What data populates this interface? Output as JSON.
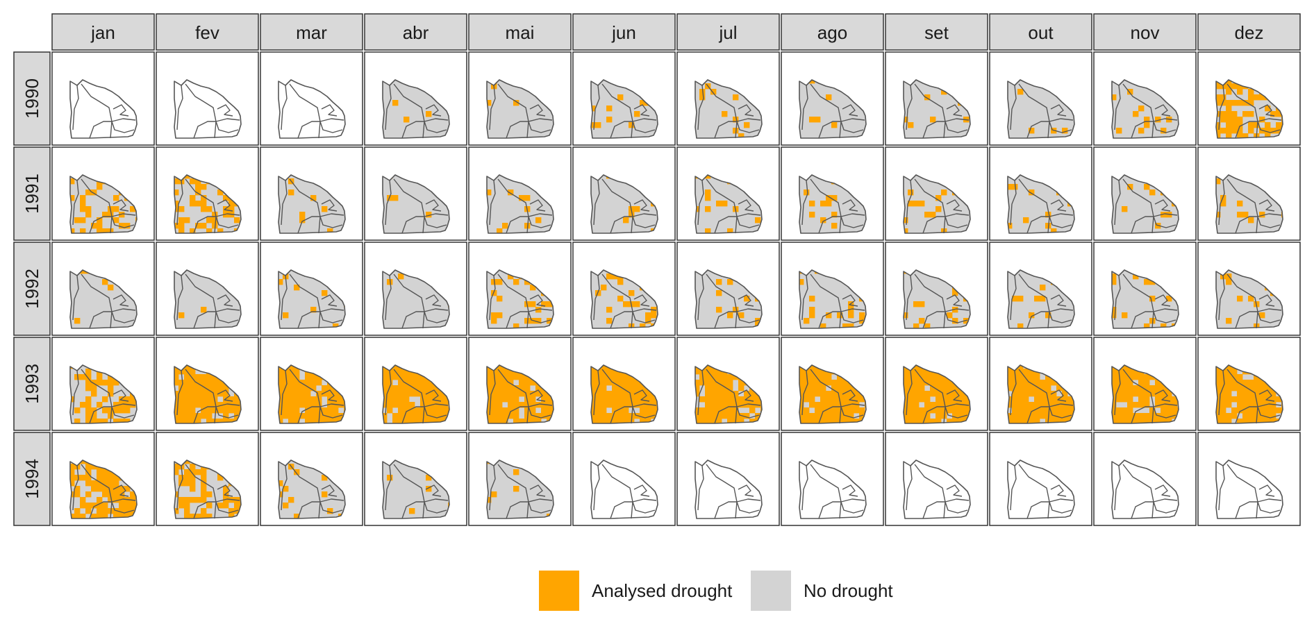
{
  "chart_data": {
    "type": "heatmap",
    "columns": [
      "jan",
      "fev",
      "mar",
      "abr",
      "mai",
      "jun",
      "jul",
      "ago",
      "set",
      "out",
      "nov",
      "dez"
    ],
    "rows": [
      "1990",
      "1991",
      "1992",
      "1993",
      "1994"
    ],
    "legend": {
      "position": "bottom",
      "entries": [
        {
          "label": "Analysed drought",
          "color": "#FFA500"
        },
        {
          "label": "No drought",
          "color": "#D3D3D3"
        }
      ]
    },
    "colors": {
      "drought": "#FFA500",
      "no_drought": "#D3D3D3",
      "strip": "#D9D9D9",
      "border": "#333333"
    },
    "available": [
      [
        0,
        0,
        0,
        1,
        1,
        1,
        1,
        1,
        1,
        1,
        1,
        1
      ],
      [
        1,
        1,
        1,
        1,
        1,
        1,
        1,
        1,
        1,
        1,
        1,
        1
      ],
      [
        1,
        1,
        1,
        1,
        1,
        1,
        1,
        1,
        1,
        1,
        1,
        1
      ],
      [
        1,
        1,
        1,
        1,
        1,
        1,
        1,
        1,
        1,
        1,
        1,
        1
      ],
      [
        1,
        1,
        1,
        1,
        1,
        0,
        0,
        0,
        0,
        0,
        0,
        0
      ]
    ],
    "drought_extent": [
      [
        0,
        0,
        0,
        0.02,
        0.03,
        0.07,
        0.12,
        0.09,
        0.07,
        0.05,
        0.08,
        0.55
      ],
      [
        0.38,
        0.45,
        0.1,
        0.08,
        0.06,
        0.06,
        0.1,
        0.08,
        0.1,
        0.12,
        0.09,
        0.07
      ],
      [
        0.04,
        0.02,
        0.05,
        0.07,
        0.15,
        0.16,
        0.11,
        0.13,
        0.13,
        0.12,
        0.1,
        0.12
      ],
      [
        0.45,
        0.9,
        0.93,
        0.93,
        0.93,
        0.9,
        0.92,
        0.92,
        0.93,
        0.93,
        0.9,
        0.87
      ],
      [
        0.72,
        0.45,
        0.1,
        0.04,
        0.05,
        0,
        0,
        0,
        0,
        0,
        0,
        0
      ]
    ]
  }
}
